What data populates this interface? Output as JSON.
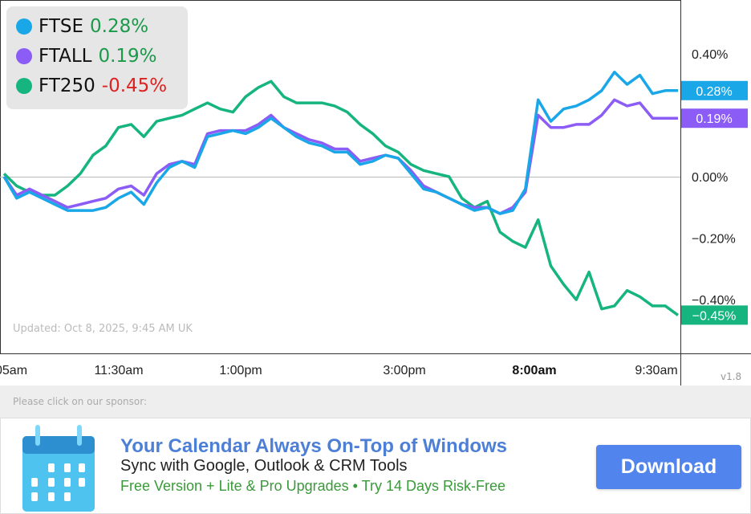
{
  "chart_data": {
    "type": "line",
    "x_ticks": [
      "05am",
      "11:30am",
      "1:00pm",
      "3:00pm",
      "8:00am",
      "9:30am"
    ],
    "x_tick_bold": "8:00am",
    "y_ticks": [
      {
        "v": 0.4,
        "label": "0.40%"
      },
      {
        "v": 0,
        "label": "0.00%"
      },
      {
        "v": -0.2,
        "label": "−0.20%"
      },
      {
        "v": -0.4,
        "label": "−0.40%"
      }
    ],
    "ylim": [
      -0.575,
      0.575
    ],
    "series": [
      {
        "name": "FTSE",
        "color": "#1aa7e8",
        "last_label": "0.28%",
        "values": [
          0,
          -0.07,
          -0.05,
          -0.07,
          -0.09,
          -0.11,
          -0.11,
          -0.11,
          -0.1,
          -0.07,
          -0.05,
          -0.09,
          -0.02,
          0.03,
          0.05,
          0.03,
          0.13,
          0.14,
          0.15,
          0.14,
          0.16,
          0.19,
          0.16,
          0.13,
          0.11,
          0.1,
          0.08,
          0.08,
          0.04,
          0.05,
          0.07,
          0.06,
          0.01,
          -0.04,
          -0.05,
          -0.07,
          -0.09,
          -0.11,
          -0.1,
          -0.12,
          -0.11,
          -0.04,
          0.25,
          0.18,
          0.22,
          0.23,
          0.25,
          0.28,
          0.34,
          0.3,
          0.33,
          0.27,
          0.28,
          0.28
        ]
      },
      {
        "name": "FTALL",
        "color": "#8b5cf6",
        "last_label": "0.19%",
        "values": [
          0,
          -0.06,
          -0.04,
          -0.06,
          -0.08,
          -0.1,
          -0.09,
          -0.08,
          -0.07,
          -0.04,
          -0.03,
          -0.06,
          0.01,
          0.04,
          0.05,
          0.04,
          0.14,
          0.15,
          0.15,
          0.15,
          0.17,
          0.2,
          0.16,
          0.14,
          0.12,
          0.11,
          0.09,
          0.09,
          0.05,
          0.06,
          0.07,
          0.06,
          0.02,
          -0.03,
          -0.05,
          -0.07,
          -0.09,
          -0.1,
          -0.1,
          -0.12,
          -0.1,
          -0.05,
          0.2,
          0.16,
          0.16,
          0.17,
          0.17,
          0.2,
          0.25,
          0.23,
          0.24,
          0.19,
          0.19,
          0.19
        ]
      },
      {
        "name": "FT250",
        "color": "#16b57f",
        "last_label": "-0.45%",
        "values": [
          0.01,
          -0.03,
          -0.05,
          -0.06,
          -0.06,
          -0.03,
          0.01,
          0.07,
          0.1,
          0.16,
          0.17,
          0.13,
          0.18,
          0.19,
          0.2,
          0.22,
          0.24,
          0.22,
          0.21,
          0.26,
          0.29,
          0.31,
          0.26,
          0.24,
          0.24,
          0.24,
          0.23,
          0.21,
          0.17,
          0.14,
          0.1,
          0.08,
          0.04,
          0.02,
          0.01,
          0,
          -0.07,
          -0.1,
          -0.08,
          -0.18,
          -0.21,
          -0.23,
          -0.14,
          -0.29,
          -0.35,
          -0.4,
          -0.31,
          -0.43,
          -0.42,
          -0.37,
          -0.39,
          -0.42,
          -0.42,
          -0.45
        ]
      }
    ]
  },
  "legend": [
    {
      "name": "FTSE",
      "change": "0.28%",
      "change_color": "#1a9a4a"
    },
    {
      "name": "FTALL",
      "change": "0.19%",
      "change_color": "#1a9a4a"
    },
    {
      "name": "FT250",
      "change": "-0.45%",
      "change_color": "#dd2222"
    }
  ],
  "updated": "Updated: Oct 8, 2025, 9:45 AM UK",
  "version": "v1.8",
  "sponsor_prompt": "Please click on our sponsor:",
  "ad": {
    "title": "Your Calendar Always On-Top of Windows",
    "subtitle": "Sync with Google, Outlook & CRM Tools",
    "tagline": "Free Version + Lite & Pro Upgrades • Try 14 Days Risk-Free",
    "button": "Download"
  }
}
